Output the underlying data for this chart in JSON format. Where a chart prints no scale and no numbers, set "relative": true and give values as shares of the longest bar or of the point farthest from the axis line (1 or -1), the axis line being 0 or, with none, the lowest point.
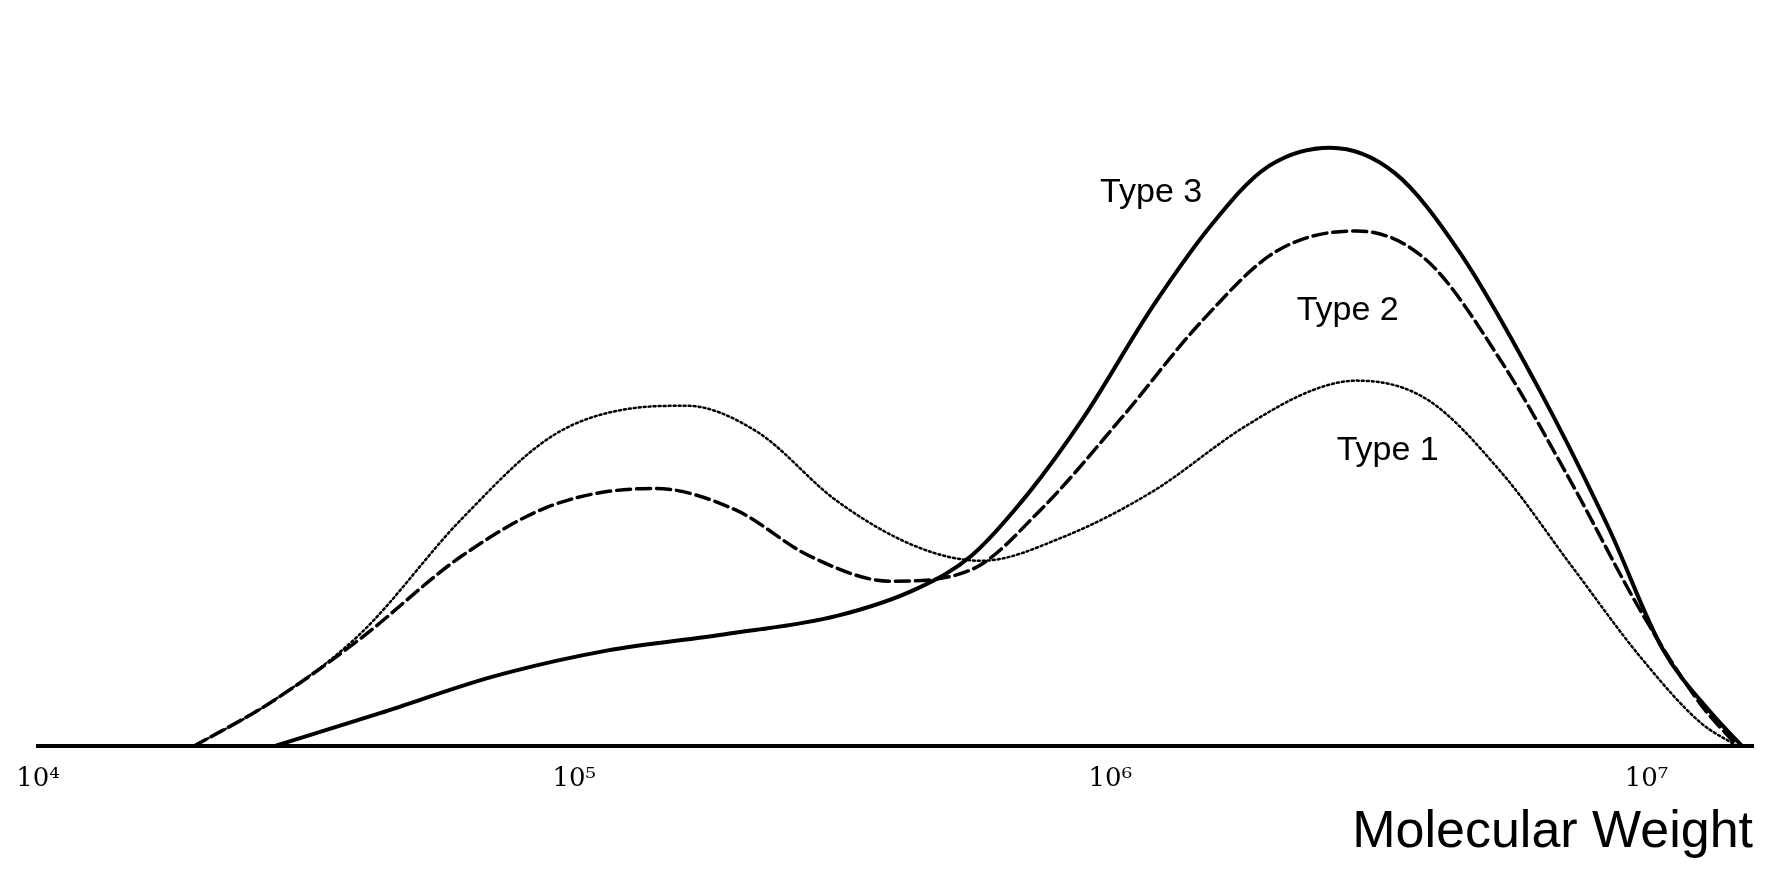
{
  "chart_data": {
    "type": "line",
    "xlabel": "Molecular Weight",
    "relative": true,
    "log": "x",
    "grid": false,
    "legend": false,
    "marker": "none",
    "xlim": [
      10000,
      15800000
    ],
    "xticks": [
      {
        "value": 10000,
        "label": "10⁴"
      },
      {
        "value": 100000,
        "label": "10⁵"
      },
      {
        "value": 1000000,
        "label": "10⁶"
      },
      {
        "value": 10000000,
        "label": "10⁷"
      }
    ],
    "series": [
      {
        "name": "Type 1",
        "color": "#000000",
        "line_style": "dotted",
        "x": [
          19500,
          26900,
          39800,
          61700,
          91200,
          129000,
          162000,
          219000,
          309000,
          437000,
          575000,
          813000,
          1200000,
          1780000,
          2400000,
          2880000,
          3890000,
          5370000,
          7240000,
          9770000,
          12600000,
          14800000
        ],
        "values": [
          0,
          0.071,
          0.187,
          0.38,
          0.519,
          0.565,
          0.569,
          0.526,
          0.41,
          0.333,
          0.31,
          0.349,
          0.426,
          0.534,
          0.596,
          0.611,
          0.58,
          0.457,
          0.302,
          0.148,
          0.04,
          0
        ]
      },
      {
        "name": "Type 2",
        "color": "#000000",
        "line_style": "dashed",
        "x": [
          19500,
          26900,
          39800,
          61700,
          91200,
          141000,
          200000,
          275000,
          389000,
          550000,
          741000,
          1050000,
          1480000,
          2040000,
          2880000,
          3890000,
          5370000,
          7240000,
          9770000,
          12600000,
          14800000
        ],
        "values": [
          0,
          0.071,
          0.179,
          0.318,
          0.403,
          0.431,
          0.395,
          0.318,
          0.276,
          0.295,
          0.395,
          0.549,
          0.71,
          0.827,
          0.861,
          0.812,
          0.642,
          0.441,
          0.225,
          0.071,
          0
        ]
      },
      {
        "name": "Type 3",
        "color": "#000000",
        "line_style": "solid",
        "x": [
          27500,
          43600,
          70800,
          115000,
          190000,
          309000,
          437000,
          550000,
          708000,
          891000,
          1200000,
          1550000,
          1950000,
          2570000,
          3390000,
          4470000,
          6310000,
          8510000,
          10700000,
          13200000,
          15100000
        ],
        "values": [
          0,
          0.056,
          0.117,
          0.16,
          0.187,
          0.218,
          0.264,
          0.318,
          0.426,
          0.549,
          0.735,
          0.873,
          0.966,
          1,
          0.958,
          0.827,
          0.596,
          0.364,
          0.164,
          0.056,
          0
        ]
      }
    ]
  }
}
